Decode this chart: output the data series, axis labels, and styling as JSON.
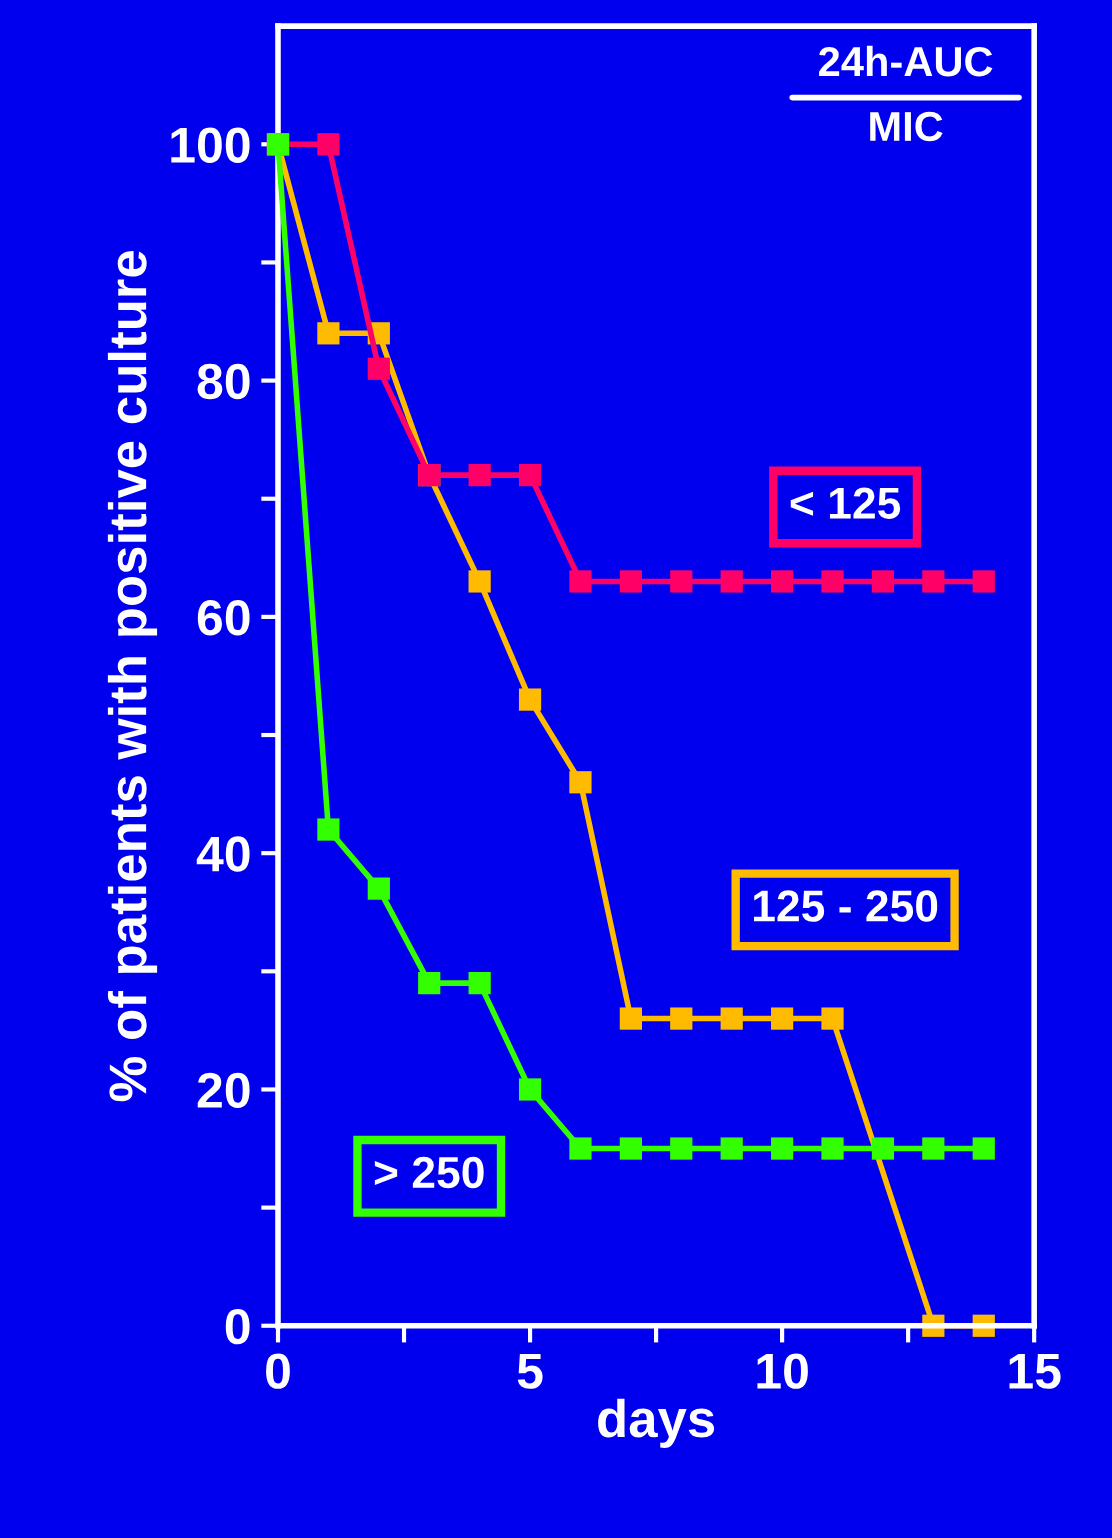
{
  "chart_data": {
    "type": "line",
    "x": [
      0,
      1,
      2,
      3,
      4,
      5,
      6,
      7,
      8,
      9,
      10,
      11,
      12,
      13,
      14
    ],
    "series": [
      {
        "name": "< 125",
        "color": "#ff0066",
        "values": [
          100,
          100,
          81,
          72,
          72,
          72,
          63,
          63,
          63,
          63,
          63,
          63,
          63,
          63,
          63
        ]
      },
      {
        "name": "125 - 250",
        "color": "#ffbb00",
        "values": [
          100,
          84,
          84,
          72,
          63,
          53,
          46,
          26,
          26,
          26,
          26,
          26,
          null,
          0,
          0
        ]
      },
      {
        "name": "> 250",
        "color": "#33ff00",
        "values": [
          100,
          42,
          37,
          29,
          29,
          20,
          15,
          15,
          15,
          15,
          15,
          15,
          15,
          15,
          15
        ]
      }
    ],
    "xlabel": "days",
    "ylabel": "% of patients with positive culture",
    "annotations": [
      "24h-AUC",
      "MIC"
    ],
    "xlim": [
      0,
      15
    ],
    "ylim": [
      0,
      110
    ],
    "xticks": [
      0,
      {
        "value": 2.5,
        "label": null
      },
      5,
      {
        "value": 7.5,
        "label": null
      },
      10,
      {
        "value": 12.5,
        "label": null
      },
      15
    ],
    "yticks": [
      0,
      {
        "value": 10,
        "label": null
      },
      20,
      {
        "value": 30,
        "label": null
      },
      40,
      {
        "value": 50,
        "label": null
      },
      60,
      {
        "value": 70,
        "label": null
      },
      80,
      {
        "value": 90,
        "label": null
      },
      100
    ],
    "marker": "square",
    "line_style": "solid",
    "grid": false,
    "legend": false
  }
}
